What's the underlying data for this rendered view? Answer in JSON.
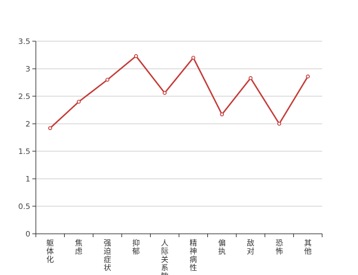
{
  "chart_data": {
    "type": "line",
    "title": "",
    "xlabel": "",
    "ylabel": "",
    "categories": [
      "躯体化",
      "焦虑",
      "强迫症状",
      "抑郁",
      "人际关系敏感",
      "精神病性",
      "偏执",
      "敌对",
      "恐怖",
      "其他"
    ],
    "series": [
      {
        "values": [
          1.92,
          2.4,
          2.8,
          3.23,
          2.56,
          3.2,
          2.17,
          2.83,
          2.0,
          2.86
        ]
      }
    ],
    "y_ticks": [
      "0",
      "0.5",
      "1",
      "1.5",
      "2",
      "2.5",
      "3",
      "3.5"
    ],
    "ylim": [
      0,
      3.5
    ],
    "grid": true,
    "legend": "none",
    "colors": {
      "line": "#c23531",
      "grid": "#cccccc",
      "axis": "#333333",
      "point_fill": "#ffffff"
    }
  }
}
